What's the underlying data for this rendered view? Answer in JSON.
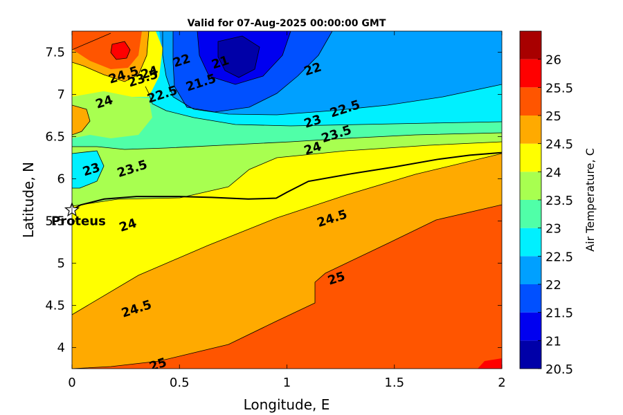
{
  "chart_data": {
    "type": "heatmap",
    "subtype": "filled-contour",
    "title": "Valid for 07-Aug-2025 00:00:00 GMT",
    "xlabel": "Longitude, E",
    "ylabel": "Latitude, N",
    "xlim": [
      0,
      2
    ],
    "ylim": [
      3.75,
      7.75
    ],
    "x_ticks": [
      0,
      0.5,
      1,
      1.5,
      2
    ],
    "x_tick_labels": [
      "0",
      "0.5",
      "1",
      "1.5",
      "2"
    ],
    "y_ticks": [
      4,
      4.5,
      5,
      5.5,
      6,
      6.5,
      7,
      7.5
    ],
    "y_tick_labels": [
      "4",
      "4.5",
      "5",
      "5.5",
      "6",
      "6.5",
      "7",
      "7.5"
    ],
    "colorbar": {
      "label": "Air Temperature, C",
      "range": [
        20.5,
        26
      ],
      "ticks": [
        20.5,
        21,
        21.5,
        22,
        22.5,
        23,
        23.5,
        24,
        24.5,
        25,
        25.5,
        26
      ],
      "tick_labels": [
        "20.5",
        "21",
        "21.5",
        "22",
        "22.5",
        "23",
        "23.5",
        "24",
        "24.5",
        "25",
        "25.5",
        "26"
      ],
      "bands": [
        {
          "from": 20.5,
          "to": 21.0,
          "color": "#0000a8"
        },
        {
          "from": 21.0,
          "to": 21.5,
          "color": "#0000f0"
        },
        {
          "from": 21.5,
          "to": 22.0,
          "color": "#0050ff"
        },
        {
          "from": 22.0,
          "to": 22.5,
          "color": "#00a0ff"
        },
        {
          "from": 22.5,
          "to": 23.0,
          "color": "#00f0ff"
        },
        {
          "from": 23.0,
          "to": 23.5,
          "color": "#50ffa8"
        },
        {
          "from": 23.5,
          "to": 24.0,
          "color": "#a8ff50"
        },
        {
          "from": 24.0,
          "to": 24.5,
          "color": "#ffff00"
        },
        {
          "from": 24.5,
          "to": 25.0,
          "color": "#ffaa00"
        },
        {
          "from": 25.0,
          "to": 25.5,
          "color": "#ff5500"
        },
        {
          "from": 25.5,
          "to": 26.0,
          "color": "#ff0000"
        },
        {
          "from": 26.0,
          "to": 26.5,
          "color": "#a80000"
        }
      ]
    },
    "contour_labels": [
      {
        "text": "25",
        "x": 0.4,
        "y": 3.8
      },
      {
        "text": "24.5",
        "x": 0.3,
        "y": 4.46
      },
      {
        "text": "25",
        "x": 1.23,
        "y": 4.82
      },
      {
        "text": "24.5",
        "x": 1.21,
        "y": 5.53
      },
      {
        "text": "24",
        "x": 0.26,
        "y": 5.45
      },
      {
        "text": "23.5",
        "x": 0.28,
        "y": 6.12
      },
      {
        "text": "23",
        "x": 0.09,
        "y": 6.11
      },
      {
        "text": "24",
        "x": 1.12,
        "y": 6.36
      },
      {
        "text": "23.5",
        "x": 1.23,
        "y": 6.53
      },
      {
        "text": "23",
        "x": 1.12,
        "y": 6.68
      },
      {
        "text": "22.5",
        "x": 1.27,
        "y": 6.83
      },
      {
        "text": "22",
        "x": 1.12,
        "y": 7.3
      },
      {
        "text": "24",
        "x": 0.15,
        "y": 6.91
      },
      {
        "text": "22",
        "x": 0.51,
        "y": 7.4
      },
      {
        "text": "21.5",
        "x": 0.6,
        "y": 7.14
      },
      {
        "text": "21",
        "x": 0.69,
        "y": 7.38
      },
      {
        "text": "22.5",
        "x": 0.42,
        "y": 7.0
      },
      {
        "text": "24.5",
        "x": 0.24,
        "y": 7.23
      },
      {
        "text": "23.5",
        "x": 0.33,
        "y": 7.19
      },
      {
        "text": "24",
        "x": 0.36,
        "y": 7.26
      }
    ],
    "markers": [
      {
        "name": "Proteus",
        "x": 0.0,
        "y": 5.63,
        "symbol": "star"
      }
    ],
    "track_line": [
      [
        0.0,
        5.63
      ],
      [
        0.04,
        5.69
      ],
      [
        0.15,
        5.76
      ],
      [
        0.3,
        5.79
      ],
      [
        0.5,
        5.79
      ],
      [
        0.65,
        5.78
      ],
      [
        0.82,
        5.76
      ],
      [
        0.95,
        5.77
      ],
      [
        1.0,
        5.84
      ],
      [
        1.1,
        5.97
      ],
      [
        1.3,
        6.06
      ],
      [
        1.5,
        6.14
      ],
      [
        1.7,
        6.23
      ],
      [
        1.85,
        6.28
      ],
      [
        2.0,
        6.31
      ]
    ]
  }
}
